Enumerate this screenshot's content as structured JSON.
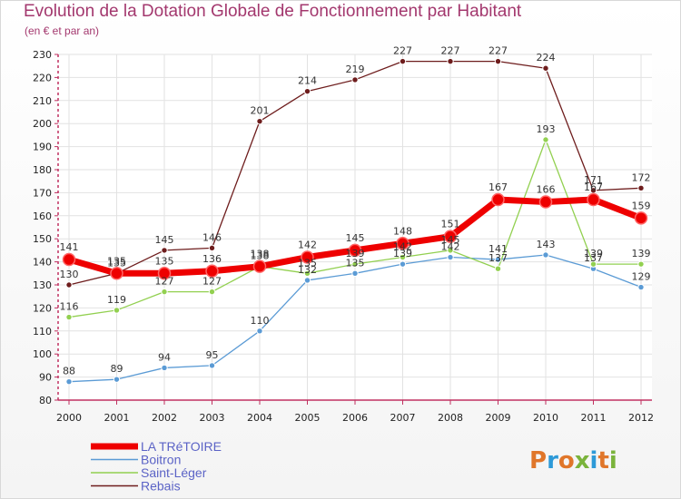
{
  "header": {
    "title": "Evolution de la Dotation Globale de Fonctionnement par Habitant",
    "subtitle": "(en € et par an)"
  },
  "logo": {
    "text": "Proxiti"
  },
  "chart_data": {
    "type": "line",
    "title": "Evolution de la Dotation Globale de Fonctionnement par Habitant",
    "subtitle": "(en € et par an)",
    "xlabel": "",
    "ylabel": "",
    "x": [
      "2000",
      "2001",
      "2002",
      "2003",
      "2004",
      "2005",
      "2006",
      "2007",
      "2008",
      "2009",
      "2010",
      "2011",
      "2012"
    ],
    "ylim": [
      80,
      230
    ],
    "yticks": [
      80,
      90,
      100,
      110,
      120,
      130,
      140,
      150,
      160,
      170,
      180,
      190,
      200,
      210,
      220,
      230
    ],
    "grid": true,
    "legend": "bottom-left",
    "series": [
      {
        "name": "Rebais",
        "color": "#6e1d1d",
        "values": [
          130,
          135,
          145,
          146,
          201,
          214,
          219,
          227,
          227,
          227,
          224,
          171,
          172
        ]
      },
      {
        "name": "Boitron",
        "color": "#5b9bd5",
        "values": [
          88,
          89,
          94,
          95,
          110,
          132,
          135,
          139,
          142,
          141,
          143,
          137,
          129
        ]
      },
      {
        "name": "Saint-Léger",
        "color": "#92d050",
        "values": [
          116,
          119,
          127,
          127,
          138,
          135,
          139,
          142,
          145,
          137,
          193,
          139,
          139
        ]
      },
      {
        "name": "LA TRéTOIRE",
        "color": "#ee0000",
        "values": [
          141,
          135,
          135,
          136,
          138,
          142,
          145,
          148,
          151,
          167,
          166,
          167,
          159
        ]
      }
    ],
    "legend_entries": [
      "LA TRéTOIRE",
      "Boitron",
      "Saint-Léger",
      "Rebais"
    ]
  }
}
